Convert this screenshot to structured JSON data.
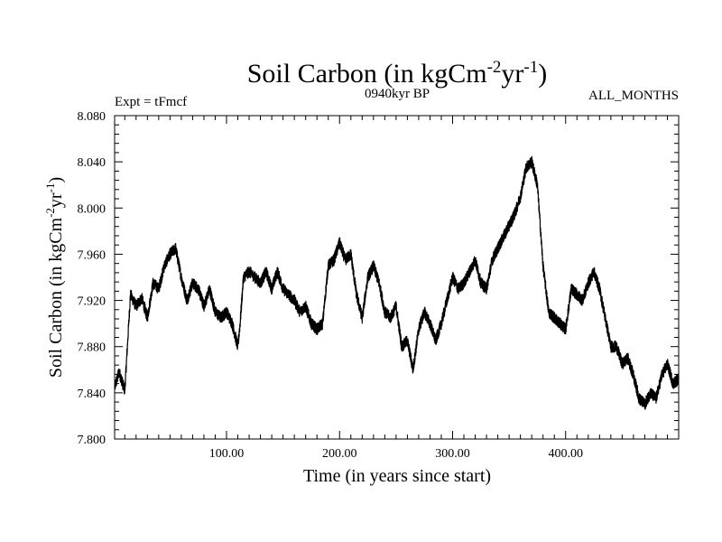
{
  "chart_data": {
    "type": "line",
    "title": "Soil Carbon (in kgCm",
    "title_sup1": "-2",
    "title_mid": "yr",
    "title_sup2": "-1",
    "title_end": ")",
    "subtitle_left": "Expt = tFmcf",
    "subtitle_center": "0940kyr BP",
    "subtitle_right": "ALL_MONTHS",
    "xlabel": "Time (in years since start)",
    "ylabel": "Soil Carbon (in kgCm",
    "ylabel_sup1": "-2",
    "ylabel_mid": "yr",
    "ylabel_sup2": "-1",
    "ylabel_end": ")",
    "xlim": [
      1,
      500
    ],
    "ylim": [
      7.8,
      8.08
    ],
    "xticks": [
      100,
      200,
      300,
      400
    ],
    "xtick_labels": [
      "100.00",
      "200.00",
      "300.00",
      "400.00"
    ],
    "yticks": [
      7.8,
      7.84,
      7.88,
      7.92,
      7.96,
      8.0,
      8.04,
      8.08
    ],
    "ytick_labels": [
      "7.800",
      "7.840",
      "7.880",
      "7.920",
      "7.960",
      "8.000",
      "8.040",
      "8.080"
    ],
    "noise_amplitude": 0.005,
    "series": [
      {
        "name": "Soil Carbon",
        "x": [
          1,
          5,
          10,
          15,
          20,
          25,
          30,
          35,
          40,
          45,
          50,
          55,
          60,
          65,
          70,
          75,
          80,
          85,
          90,
          95,
          100,
          105,
          110,
          112,
          115,
          120,
          125,
          130,
          135,
          140,
          145,
          150,
          155,
          160,
          165,
          170,
          175,
          180,
          185,
          190,
          195,
          200,
          205,
          210,
          215,
          220,
          225,
          230,
          235,
          240,
          245,
          250,
          255,
          260,
          265,
          270,
          275,
          280,
          285,
          290,
          295,
          300,
          305,
          310,
          315,
          320,
          325,
          330,
          335,
          340,
          345,
          350,
          355,
          360,
          365,
          370,
          375,
          380,
          385,
          390,
          395,
          400,
          405,
          410,
          415,
          420,
          425,
          430,
          435,
          440,
          445,
          450,
          455,
          460,
          465,
          470,
          475,
          480,
          485,
          490,
          495,
          500
        ],
        "y": [
          7.845,
          7.858,
          7.842,
          7.925,
          7.915,
          7.922,
          7.905,
          7.935,
          7.93,
          7.95,
          7.96,
          7.965,
          7.94,
          7.92,
          7.935,
          7.93,
          7.915,
          7.93,
          7.91,
          7.905,
          7.91,
          7.9,
          7.88,
          7.9,
          7.94,
          7.945,
          7.94,
          7.935,
          7.945,
          7.93,
          7.945,
          7.93,
          7.925,
          7.92,
          7.91,
          7.915,
          7.9,
          7.895,
          7.9,
          7.95,
          7.955,
          7.97,
          7.955,
          7.96,
          7.925,
          7.905,
          7.94,
          7.95,
          7.935,
          7.91,
          7.905,
          7.915,
          7.88,
          7.885,
          7.86,
          7.895,
          7.91,
          7.9,
          7.885,
          7.9,
          7.92,
          7.94,
          7.93,
          7.935,
          7.945,
          7.955,
          7.935,
          7.93,
          7.955,
          7.965,
          7.975,
          7.985,
          7.995,
          8.01,
          8.035,
          8.04,
          8.02,
          7.95,
          7.91,
          7.905,
          7.9,
          7.895,
          7.93,
          7.925,
          7.92,
          7.935,
          7.945,
          7.93,
          7.905,
          7.88,
          7.88,
          7.865,
          7.87,
          7.855,
          7.835,
          7.83,
          7.84,
          7.835,
          7.855,
          7.865,
          7.848,
          7.852
        ]
      }
    ]
  }
}
